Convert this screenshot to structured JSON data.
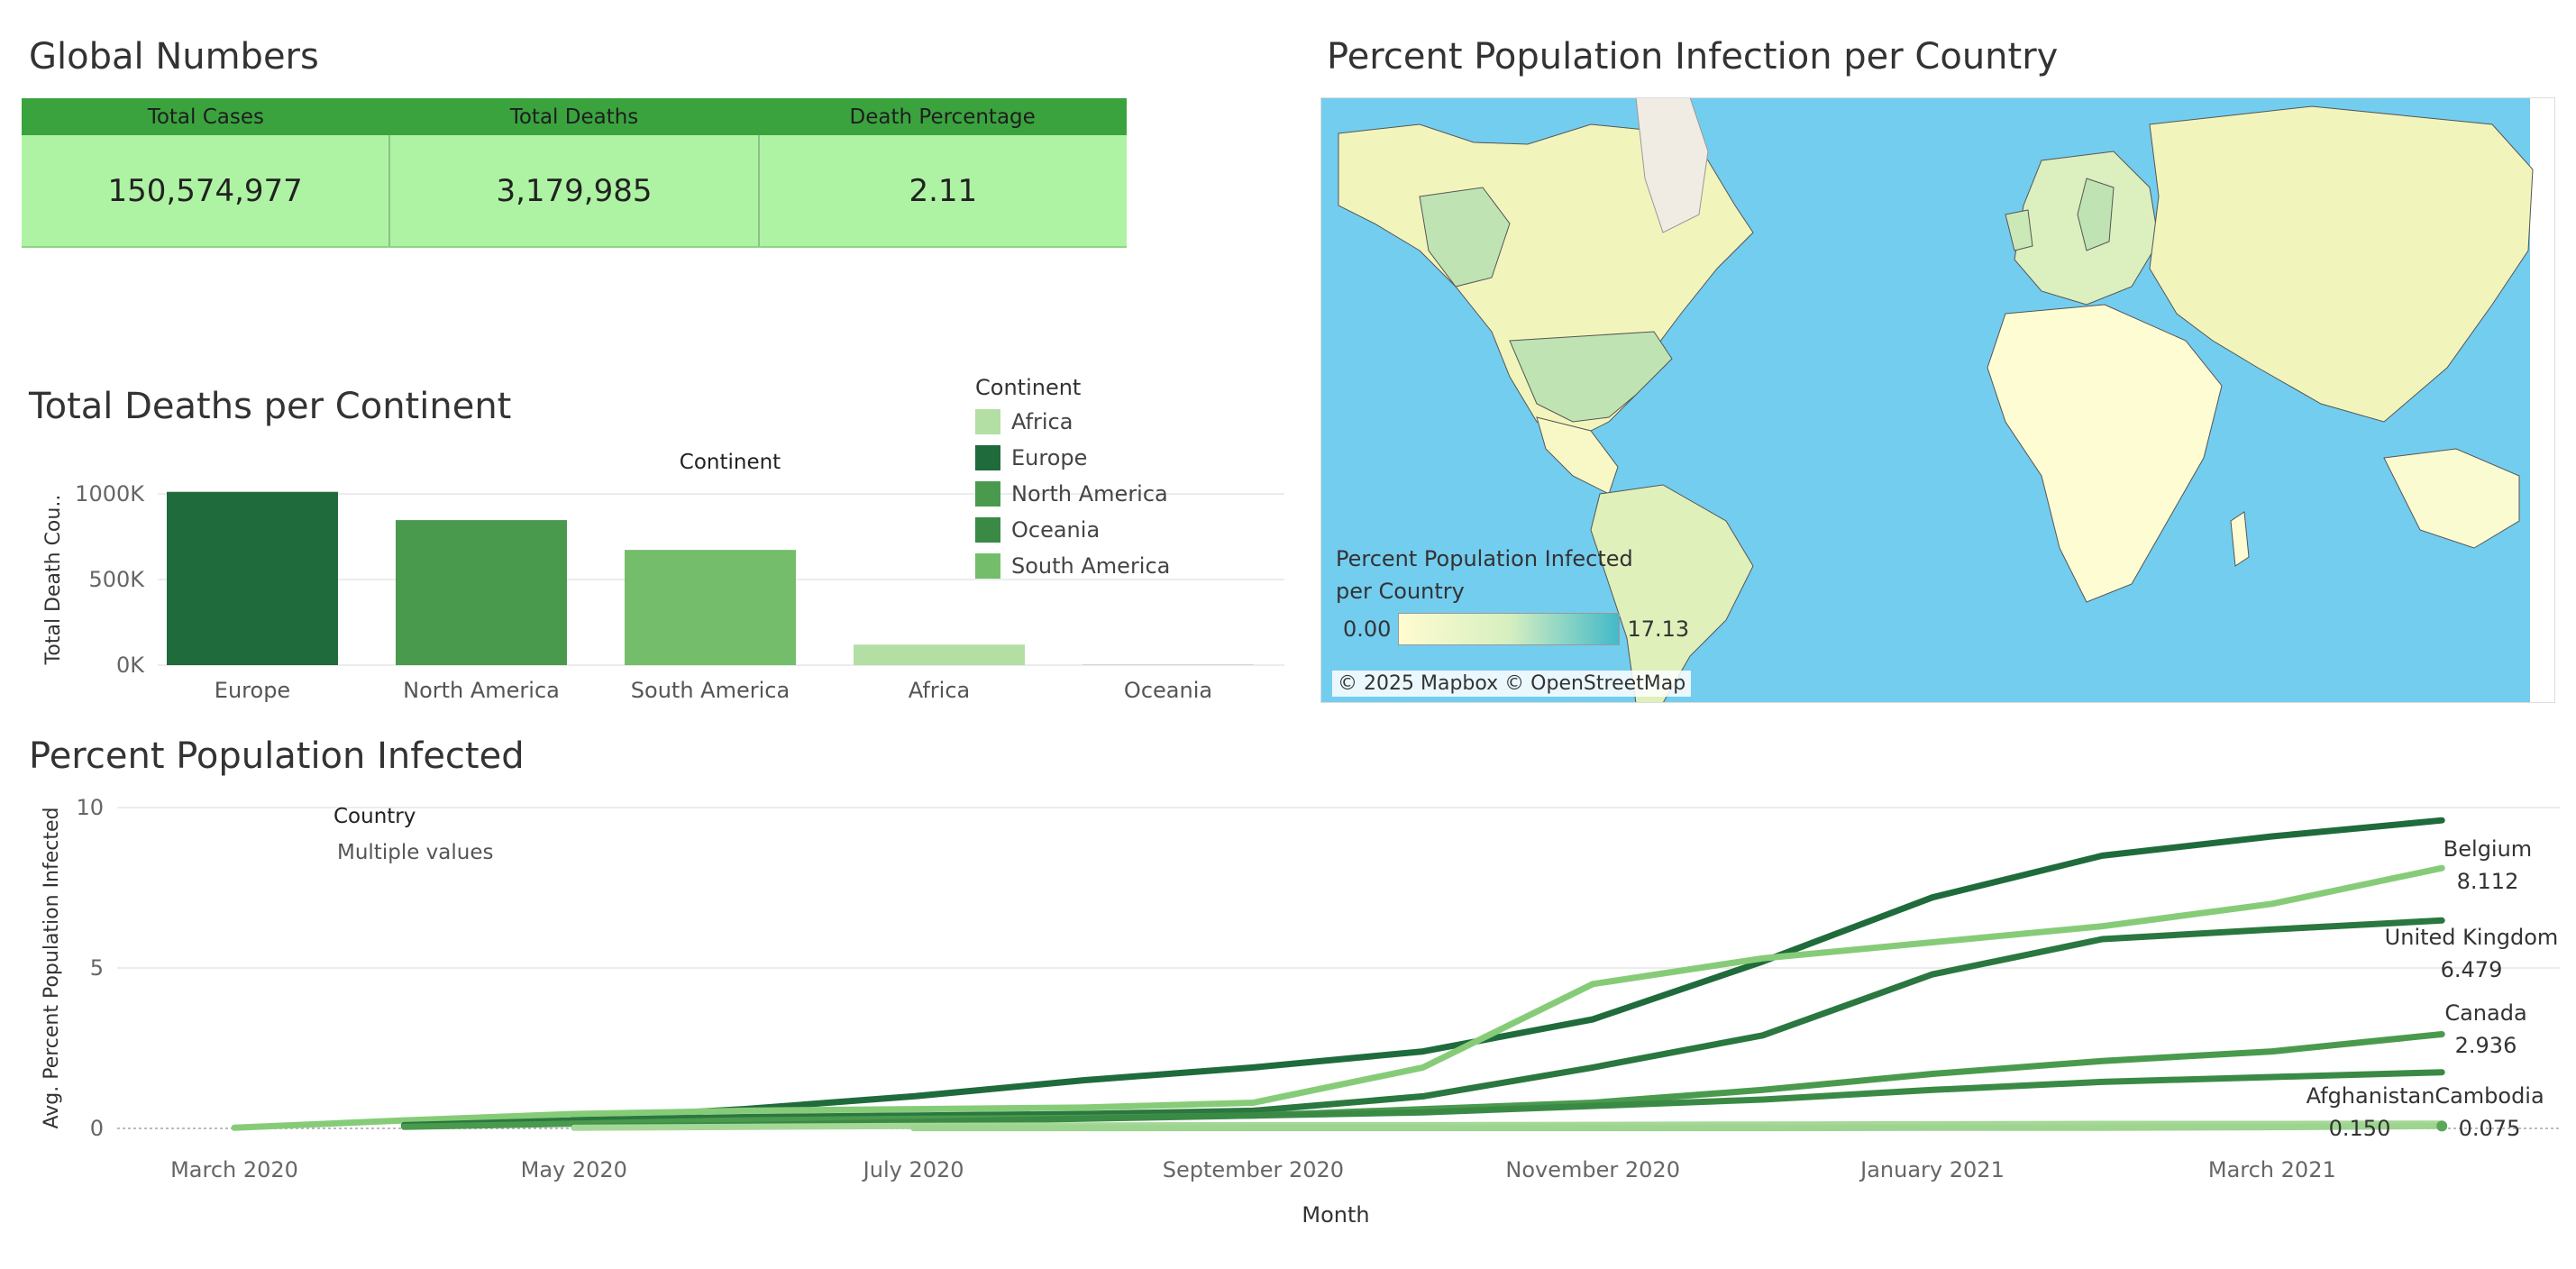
{
  "global_numbers": {
    "title": "Global Numbers",
    "headers": [
      "Total Cases",
      "Total Deaths",
      "Death Percentage"
    ],
    "values": [
      "150,574,977",
      "3,179,985",
      "2.11"
    ],
    "colors": {
      "header": "#3aa33e",
      "body": "#aef3a3"
    }
  },
  "deaths_chart": {
    "title": "Total Deaths per Continent",
    "header": "Continent",
    "ylabel": "Total Death Cou..",
    "yticks": [
      "1000K",
      "500K",
      "0K"
    ],
    "legend": {
      "title": "Continent",
      "items": [
        {
          "label": "Africa",
          "color": "#b3dfa4"
        },
        {
          "label": "Europe",
          "color": "#1f6b3c"
        },
        {
          "label": "North America",
          "color": "#4a9a4e"
        },
        {
          "label": "Oceania",
          "color": "#3a8a46"
        },
        {
          "label": "South America",
          "color": "#74bd6a"
        }
      ]
    }
  },
  "map": {
    "title": "Percent Population Infection per Country",
    "legend_title_line1": "Percent Population Infected",
    "legend_title_line2": "per Country",
    "legend_min": "0.00",
    "legend_max": "17.13",
    "attribution": "© 2025 Mapbox © OpenStreetMap",
    "colors": {
      "ocean": "#73cdef",
      "low": "#fffcd0",
      "high": "#43bac9"
    }
  },
  "infected_chart": {
    "title": "Percent Population Infected",
    "filter_title": "Country",
    "filter_value": "Multiple values",
    "xlabel": "Month",
    "ylabel": "Avg. Percent Population Infected",
    "yticks": [
      "10",
      "5",
      "0"
    ],
    "xticks": [
      "March 2020",
      "May 2020",
      "July 2020",
      "September 2020",
      "November 2020",
      "January 2021",
      "March 2021"
    ],
    "end_labels": [
      {
        "name": "Belgium",
        "value": "8.112"
      },
      {
        "name": "United Kingdom",
        "value": "6.479"
      },
      {
        "name": "Canada",
        "value": "2.936"
      },
      {
        "name": "Afghanistan",
        "value": "0.150"
      },
      {
        "name": "Cambodia",
        "value": "0.075"
      }
    ]
  },
  "chart_data": [
    {
      "type": "bar",
      "header": "Continent",
      "ylabel": "Total Death Cou..",
      "categories": [
        "Europe",
        "North America",
        "South America",
        "Africa",
        "Oceania"
      ],
      "values": [
        1012000,
        847000,
        673000,
        120000,
        1000
      ],
      "colors": [
        "#1f6b3c",
        "#4a9a4e",
        "#74bd6a",
        "#b3dfa4",
        "#3a8a46"
      ],
      "ylim": [
        0,
        1000000
      ],
      "legend": "right"
    },
    {
      "type": "line",
      "xlabel": "Month",
      "ylabel": "Avg. Percent Population Infected",
      "ylim": [
        0,
        10
      ],
      "x": [
        "2020-03",
        "2020-04",
        "2020-05",
        "2020-06",
        "2020-07",
        "2020-08",
        "2020-09",
        "2020-10",
        "2020-11",
        "2020-12",
        "2021-01",
        "2021-02",
        "2021-03",
        "2021-04"
      ],
      "series": [
        {
          "color": "#1f6b3c",
          "values": [
            null,
            null,
            0.3,
            0.6,
            1.0,
            1.5,
            1.9,
            2.4,
            3.4,
            5.2,
            7.2,
            8.5,
            9.1,
            9.6
          ]
        },
        {
          "name": "Belgium",
          "color": "#86cc78",
          "values": [
            0.02,
            0.25,
            0.45,
            0.55,
            0.6,
            0.65,
            0.8,
            1.9,
            4.5,
            5.3,
            5.8,
            6.3,
            7.0,
            8.112
          ]
        },
        {
          "name": "United Kingdom",
          "color": "#2a773f",
          "values": [
            null,
            0.1,
            0.25,
            0.35,
            0.4,
            0.45,
            0.55,
            1.0,
            1.9,
            2.9,
            4.8,
            5.9,
            6.2,
            6.479
          ]
        },
        {
          "name": "Canada",
          "color": "#4a9a4e",
          "values": [
            null,
            0.05,
            0.15,
            0.25,
            0.3,
            0.33,
            0.4,
            0.6,
            0.8,
            1.2,
            1.7,
            2.1,
            2.4,
            2.936
          ]
        },
        {
          "color": "#3a8a46",
          "values": [
            null,
            null,
            0.05,
            0.1,
            0.2,
            0.3,
            0.4,
            0.5,
            0.7,
            0.9,
            1.2,
            1.45,
            1.6,
            1.75
          ]
        },
        {
          "name": "Afghanistan",
          "color": "#a5d897",
          "values": [
            null,
            null,
            0.02,
            0.05,
            0.08,
            0.09,
            0.1,
            0.1,
            0.11,
            0.12,
            0.13,
            0.14,
            0.14,
            0.15
          ]
        },
        {
          "name": "Cambodia",
          "color": "#9dd48f",
          "values": [
            null,
            null,
            null,
            null,
            0.01,
            0.01,
            0.01,
            0.01,
            0.01,
            0.01,
            0.02,
            0.02,
            0.04,
            0.075
          ]
        }
      ]
    }
  ]
}
